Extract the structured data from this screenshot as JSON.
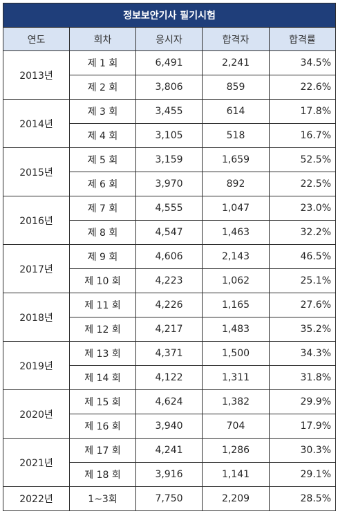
{
  "title": "정보보안기사 필기시험",
  "columns": [
    "연도",
    "회차",
    "응시자",
    "합격자",
    "합격률"
  ],
  "groups": [
    {
      "year": "2013년",
      "rows": [
        {
          "round": "제 1 회",
          "applicants": "6,491",
          "passed": "2,241",
          "rate": "34.5%"
        },
        {
          "round": "제 2 회",
          "applicants": "3,806",
          "passed": "859",
          "rate": "22.6%"
        }
      ]
    },
    {
      "year": "2014년",
      "rows": [
        {
          "round": "제 3 회",
          "applicants": "3,455",
          "passed": "614",
          "rate": "17.8%"
        },
        {
          "round": "제 4 회",
          "applicants": "3,105",
          "passed": "518",
          "rate": "16.7%"
        }
      ]
    },
    {
      "year": "2015년",
      "rows": [
        {
          "round": "제 5 회",
          "applicants": "3,159",
          "passed": "1,659",
          "rate": "52.5%"
        },
        {
          "round": "제 6 회",
          "applicants": "3,970",
          "passed": "892",
          "rate": "22.5%"
        }
      ]
    },
    {
      "year": "2016년",
      "rows": [
        {
          "round": "제 7 회",
          "applicants": "4,555",
          "passed": "1,047",
          "rate": "23.0%"
        },
        {
          "round": "제 8 회",
          "applicants": "4,547",
          "passed": "1,463",
          "rate": "32.2%"
        }
      ]
    },
    {
      "year": "2017년",
      "rows": [
        {
          "round": "제 9 회",
          "applicants": "4,606",
          "passed": "2,143",
          "rate": "46.5%"
        },
        {
          "round": "제 10 회",
          "applicants": "4,223",
          "passed": "1,062",
          "rate": "25.1%"
        }
      ]
    },
    {
      "year": "2018년",
      "rows": [
        {
          "round": "제 11 회",
          "applicants": "4,226",
          "passed": "1,165",
          "rate": "27.6%"
        },
        {
          "round": "제 12 회",
          "applicants": "4,217",
          "passed": "1,483",
          "rate": "35.2%"
        }
      ]
    },
    {
      "year": "2019년",
      "rows": [
        {
          "round": "제 13 회",
          "applicants": "4,371",
          "passed": "1,500",
          "rate": "34.3%"
        },
        {
          "round": "제 14 회",
          "applicants": "4,122",
          "passed": "1,311",
          "rate": "31.8%"
        }
      ]
    },
    {
      "year": "2020년",
      "rows": [
        {
          "round": "제 15 회",
          "applicants": "4,624",
          "passed": "1,382",
          "rate": "29.9%"
        },
        {
          "round": "제 16 회",
          "applicants": "3,940",
          "passed": "704",
          "rate": "17.9%"
        }
      ]
    },
    {
      "year": "2021년",
      "rows": [
        {
          "round": "제 17 회",
          "applicants": "4,241",
          "passed": "1,286",
          "rate": "30.3%"
        },
        {
          "round": "제 18 회",
          "applicants": "3,916",
          "passed": "1,141",
          "rate": "29.1%"
        }
      ]
    },
    {
      "year": "2022년",
      "rows": [
        {
          "round": "1~3회",
          "applicants": "7,750",
          "passed": "2,209",
          "rate": "28.5%"
        }
      ]
    }
  ],
  "colors": {
    "title_bg": "#1f3e7a",
    "header_bg": "#d8e3f3",
    "border": "#2b2b2b"
  }
}
